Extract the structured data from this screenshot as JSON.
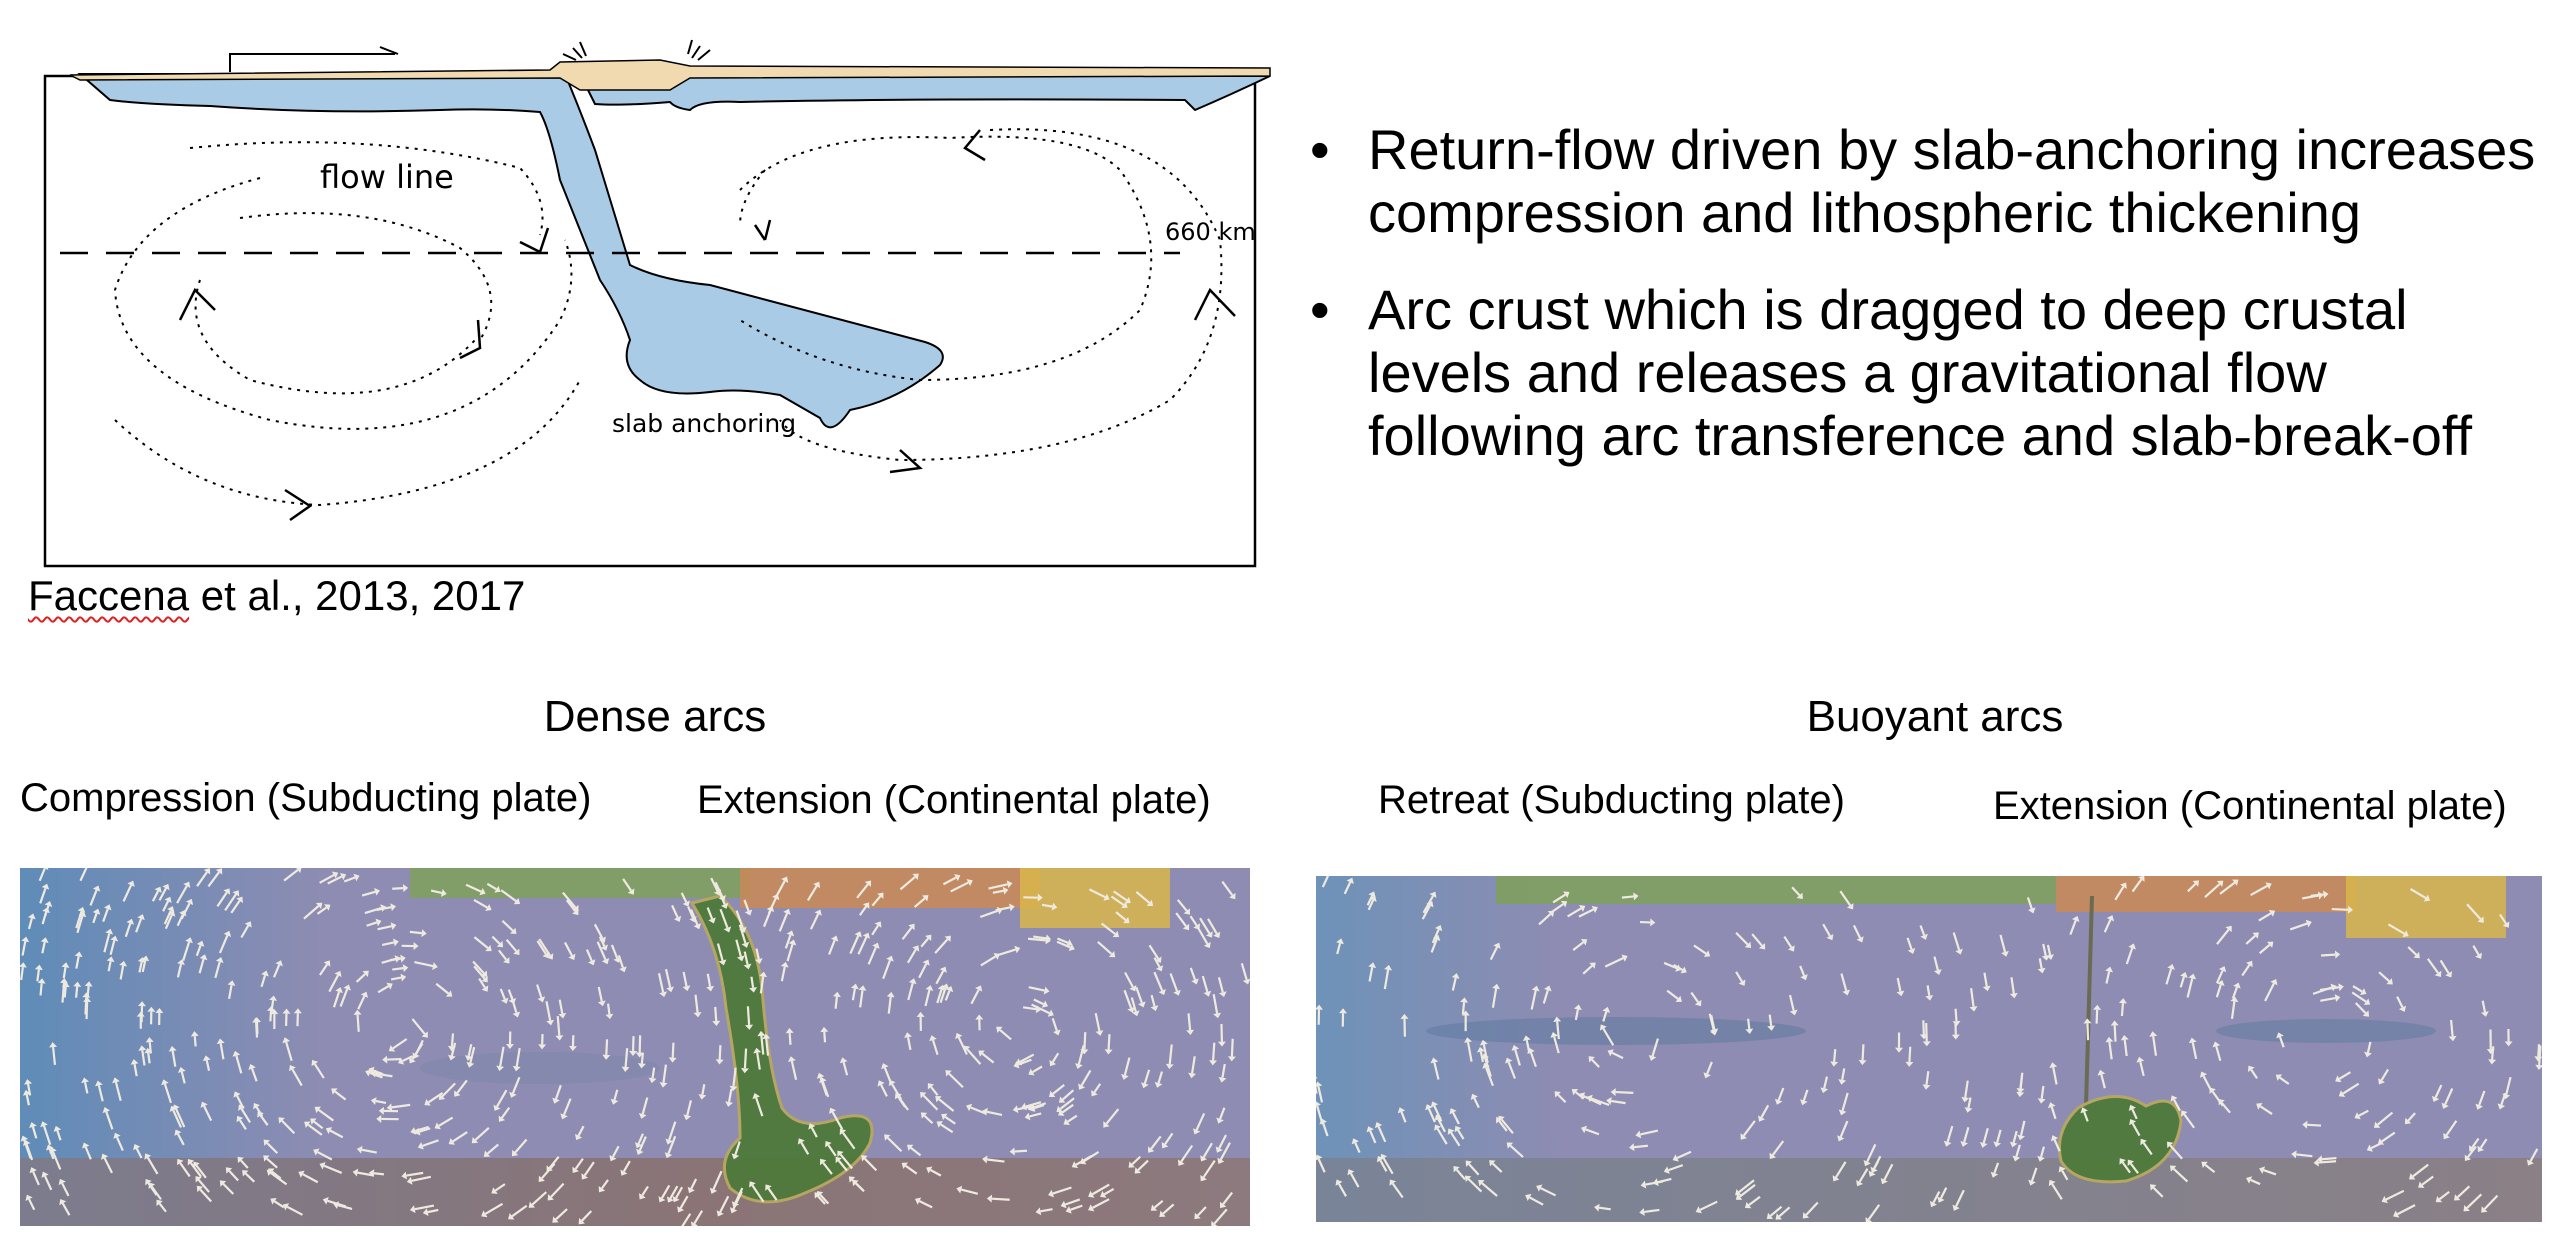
{
  "schematic": {
    "label_flow_line": "flow line",
    "label_660": "660 km",
    "label_slab_anchoring": "slab anchoring",
    "colors": {
      "slab": "#a9cbe6",
      "crust": "#f1d9b0",
      "outline": "#000000"
    },
    "citation": "Faccena et al., 2013, 2017",
    "citation_squiggle": "Faccena",
    "citation_rest": " et al., 2013, 2017"
  },
  "bullets": [
    {
      "text": "Return-flow driven by slab-anchoring increases compression and lithospheric thickening"
    },
    {
      "text": "Arc crust which is dragged to deep crustal levels and releases a gravitational flow following arc transference and slab-break-off"
    }
  ],
  "dense": {
    "title": "Dense arcs",
    "left_label": "Compression (Subducting plate)",
    "right_label": "Extension (Continental plate)"
  },
  "buoyant": {
    "title": "Buoyant arcs",
    "left_label": "Retreat (Subducting plate)",
    "right_label": "Extension (Continental plate)"
  },
  "model_colors": {
    "mantle": "#8e8cb2",
    "mantle_blue": "#6f92b8",
    "lower_mantle": "#8a7a7c",
    "plate_green": "#7fa05a",
    "slab_green": "#4e7a3a",
    "continent_orange": "#d49a4e",
    "continent_yellow": "#d9b54a",
    "arrows": "#eeeae0"
  }
}
